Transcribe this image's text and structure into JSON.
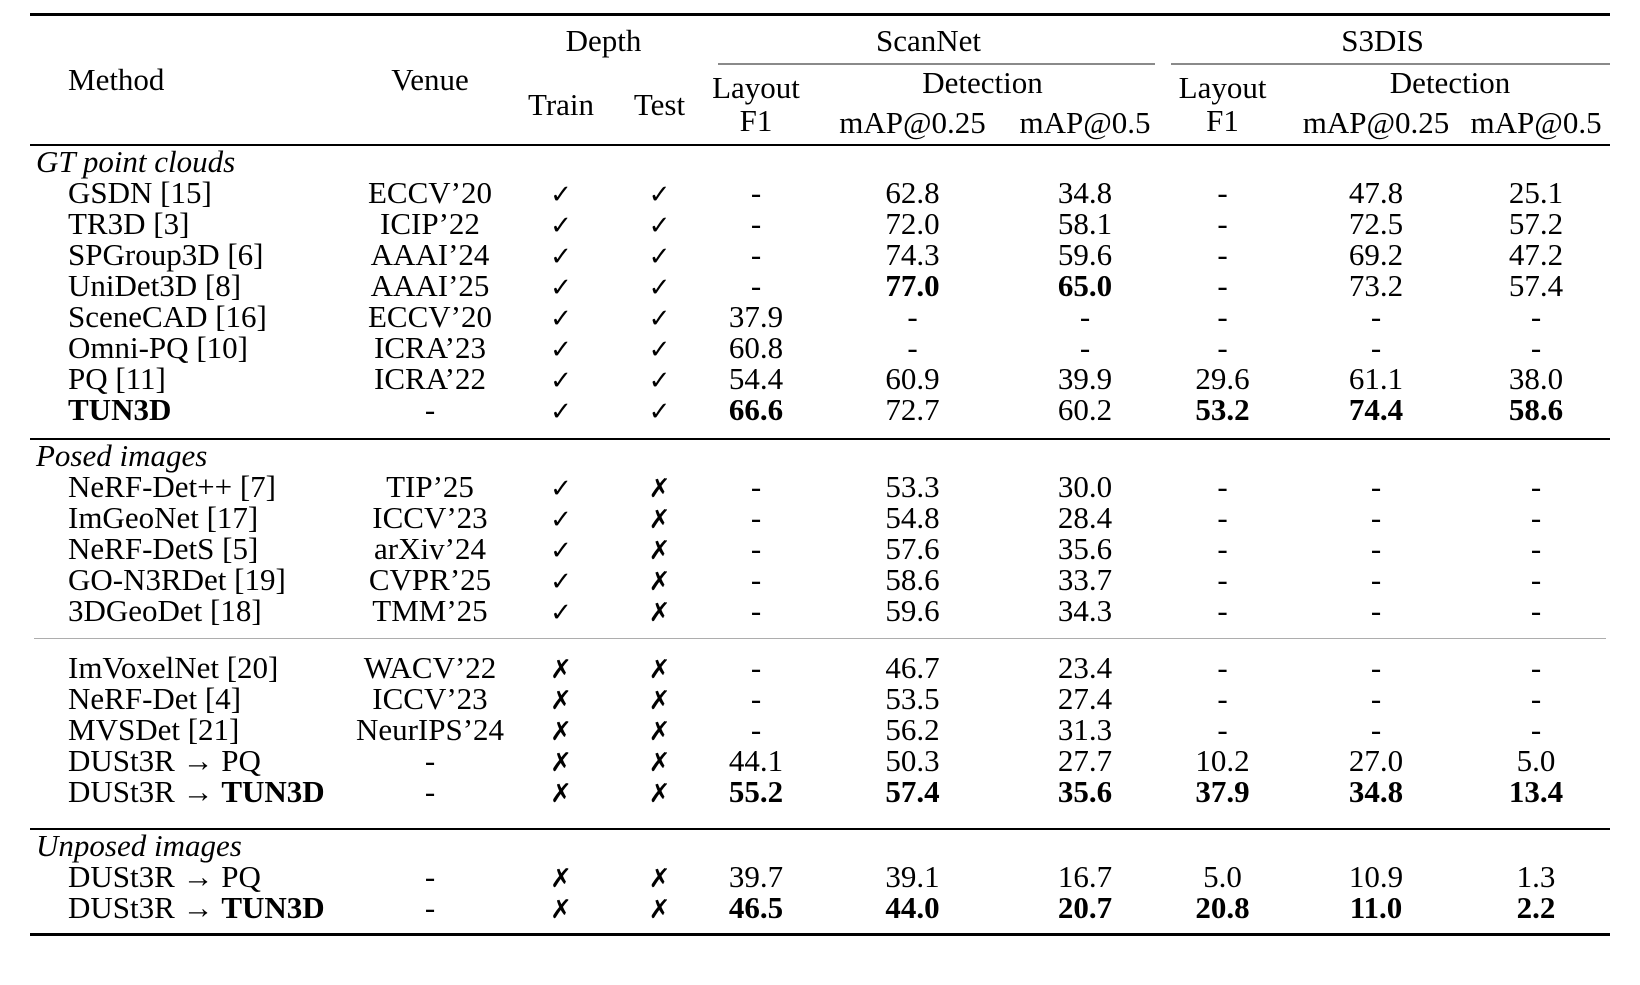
{
  "table": {
    "header": {
      "method": "Method",
      "venue": "Venue",
      "depth": "Depth",
      "train": "Train",
      "test": "Test",
      "scannet": "ScanNet",
      "s3dis": "S3DIS",
      "layout_line1": "Layout",
      "layout_line2": "F1",
      "detection": "Detection",
      "map025": "mAP@0.25",
      "map05": "mAP@0.5"
    },
    "marks": {
      "check": "✓",
      "cross": "✗"
    },
    "sections": [
      {
        "label": "GT point clouds",
        "groups": [
          {
            "rows": [
              {
                "method": "GSDN [15]",
                "method_bold": "",
                "venue": "ECCV’20",
                "train": "check",
                "test": "check",
                "values": [
                  "-",
                  "62.8",
                  "34.8",
                  "-",
                  "47.8",
                  "25.1"
                ],
                "bold": [
                  false,
                  false,
                  false,
                  false,
                  false,
                  false
                ]
              },
              {
                "method": "TR3D [3]",
                "method_bold": "",
                "venue": "ICIP’22",
                "train": "check",
                "test": "check",
                "values": [
                  "-",
                  "72.0",
                  "58.1",
                  "-",
                  "72.5",
                  "57.2"
                ],
                "bold": [
                  false,
                  false,
                  false,
                  false,
                  false,
                  false
                ]
              },
              {
                "method": "SPGroup3D [6]",
                "method_bold": "",
                "venue": "AAAI’24",
                "train": "check",
                "test": "check",
                "values": [
                  "-",
                  "74.3",
                  "59.6",
                  "-",
                  "69.2",
                  "47.2"
                ],
                "bold": [
                  false,
                  false,
                  false,
                  false,
                  false,
                  false
                ]
              },
              {
                "method": "UniDet3D [8]",
                "method_bold": "",
                "venue": "AAAI’25",
                "train": "check",
                "test": "check",
                "values": [
                  "-",
                  "77.0",
                  "65.0",
                  "-",
                  "73.2",
                  "57.4"
                ],
                "bold": [
                  false,
                  true,
                  true,
                  false,
                  false,
                  false
                ]
              },
              {
                "method": "SceneCAD [16]",
                "method_bold": "",
                "venue": "ECCV’20",
                "train": "check",
                "test": "check",
                "values": [
                  "37.9",
                  "-",
                  "-",
                  "-",
                  "-",
                  "-"
                ],
                "bold": [
                  false,
                  false,
                  false,
                  false,
                  false,
                  false
                ]
              },
              {
                "method": "Omni-PQ [10]",
                "method_bold": "",
                "venue": "ICRA’23",
                "train": "check",
                "test": "check",
                "values": [
                  "60.8",
                  "-",
                  "-",
                  "-",
                  "-",
                  "-"
                ],
                "bold": [
                  false,
                  false,
                  false,
                  false,
                  false,
                  false
                ]
              },
              {
                "method": "PQ [11]",
                "method_bold": "",
                "venue": "ICRA’22",
                "train": "check",
                "test": "check",
                "values": [
                  "54.4",
                  "60.9",
                  "39.9",
                  "29.6",
                  "61.1",
                  "38.0"
                ],
                "bold": [
                  false,
                  false,
                  false,
                  false,
                  false,
                  false
                ]
              },
              {
                "method": "",
                "method_bold": "TUN3D",
                "venue": "-",
                "train": "check",
                "test": "check",
                "values": [
                  "66.6",
                  "72.7",
                  "60.2",
                  "53.2",
                  "74.4",
                  "58.6"
                ],
                "bold": [
                  true,
                  false,
                  false,
                  true,
                  true,
                  true
                ]
              }
            ]
          }
        ]
      },
      {
        "label": "Posed images",
        "groups": [
          {
            "rows": [
              {
                "method": "NeRF-Det++ [7]",
                "method_bold": "",
                "venue": "TIP’25",
                "train": "check",
                "test": "cross",
                "values": [
                  "-",
                  "53.3",
                  "30.0",
                  "-",
                  "-",
                  "-"
                ],
                "bold": [
                  false,
                  false,
                  false,
                  false,
                  false,
                  false
                ]
              },
              {
                "method": "ImGeoNet [17]",
                "method_bold": "",
                "venue": "ICCV’23",
                "train": "check",
                "test": "cross",
                "values": [
                  "-",
                  "54.8",
                  "28.4",
                  "-",
                  "-",
                  "-"
                ],
                "bold": [
                  false,
                  false,
                  false,
                  false,
                  false,
                  false
                ]
              },
              {
                "method": "NeRF-DetS [5]",
                "method_bold": "",
                "venue": "arXiv’24",
                "train": "check",
                "test": "cross",
                "values": [
                  "-",
                  "57.6",
                  "35.6",
                  "-",
                  "-",
                  "-"
                ],
                "bold": [
                  false,
                  false,
                  false,
                  false,
                  false,
                  false
                ]
              },
              {
                "method": "GO-N3RDet [19]",
                "method_bold": "",
                "venue": "CVPR’25",
                "train": "check",
                "test": "cross",
                "values": [
                  "-",
                  "58.6",
                  "33.7",
                  "-",
                  "-",
                  "-"
                ],
                "bold": [
                  false,
                  false,
                  false,
                  false,
                  false,
                  false
                ]
              },
              {
                "method": "3DGeoDet [18]",
                "method_bold": "",
                "venue": "TMM’25",
                "train": "check",
                "test": "cross",
                "values": [
                  "-",
                  "59.6",
                  "34.3",
                  "-",
                  "-",
                  "-"
                ],
                "bold": [
                  false,
                  false,
                  false,
                  false,
                  false,
                  false
                ]
              }
            ]
          },
          {
            "rows": [
              {
                "method": "ImVoxelNet [20]",
                "method_bold": "",
                "venue": "WACV’22",
                "train": "cross",
                "test": "cross",
                "values": [
                  "-",
                  "46.7",
                  "23.4",
                  "-",
                  "-",
                  "-"
                ],
                "bold": [
                  false,
                  false,
                  false,
                  false,
                  false,
                  false
                ]
              },
              {
                "method": "NeRF-Det [4]",
                "method_bold": "",
                "venue": "ICCV’23",
                "train": "cross",
                "test": "cross",
                "values": [
                  "-",
                  "53.5",
                  "27.4",
                  "-",
                  "-",
                  "-"
                ],
                "bold": [
                  false,
                  false,
                  false,
                  false,
                  false,
                  false
                ]
              },
              {
                "method": "MVSDet [21]",
                "method_bold": "",
                "venue": "NeurIPS’24",
                "train": "cross",
                "test": "cross",
                "values": [
                  "-",
                  "56.2",
                  "31.3",
                  "-",
                  "-",
                  "-"
                ],
                "bold": [
                  false,
                  false,
                  false,
                  false,
                  false,
                  false
                ]
              },
              {
                "method": "DUSt3R → PQ",
                "method_bold": "",
                "venue": "-",
                "train": "cross",
                "test": "cross",
                "values": [
                  "44.1",
                  "50.3",
                  "27.7",
                  "10.2",
                  "27.0",
                  "5.0"
                ],
                "bold": [
                  false,
                  false,
                  false,
                  false,
                  false,
                  false
                ]
              },
              {
                "method": "DUSt3R → ",
                "method_bold": "TUN3D",
                "venue": "-",
                "train": "cross",
                "test": "cross",
                "values": [
                  "55.2",
                  "57.4",
                  "35.6",
                  "37.9",
                  "34.8",
                  "13.4"
                ],
                "bold": [
                  true,
                  true,
                  true,
                  true,
                  true,
                  true
                ]
              }
            ]
          }
        ]
      },
      {
        "label": "Unposed images",
        "groups": [
          {
            "rows": [
              {
                "method": "DUSt3R → PQ",
                "method_bold": "",
                "venue": "-",
                "train": "cross",
                "test": "cross",
                "values": [
                  "39.7",
                  "39.1",
                  "16.7",
                  "5.0",
                  "10.9",
                  "1.3"
                ],
                "bold": [
                  false,
                  false,
                  false,
                  false,
                  false,
                  false
                ]
              },
              {
                "method": "DUSt3R → ",
                "method_bold": "TUN3D",
                "venue": "-",
                "train": "cross",
                "test": "cross",
                "values": [
                  "46.5",
                  "44.0",
                  "20.7",
                  "20.8",
                  "11.0",
                  "2.2"
                ],
                "bold": [
                  true,
                  true,
                  true,
                  true,
                  true,
                  true
                ]
              }
            ]
          }
        ]
      }
    ]
  }
}
